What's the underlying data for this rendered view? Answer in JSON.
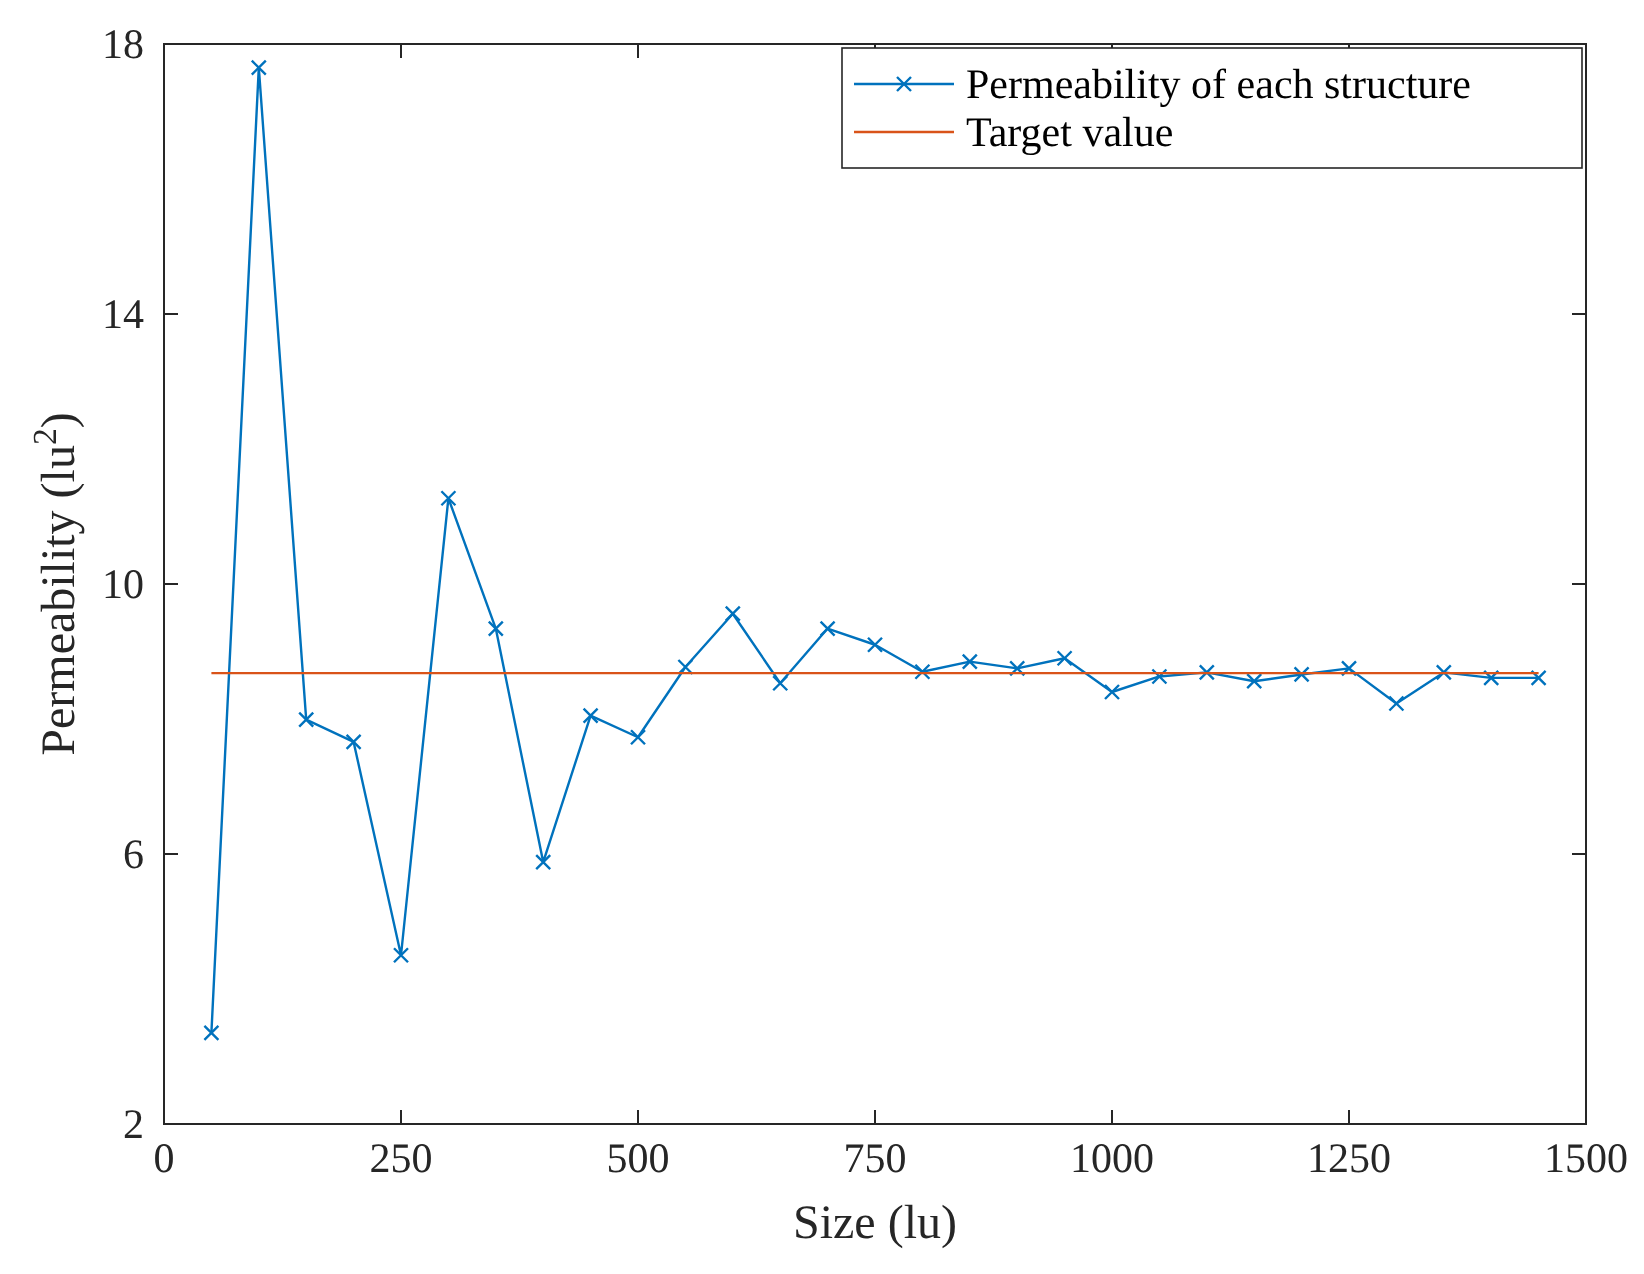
{
  "chart_data": {
    "type": "line",
    "xlabel": "Size (lu)",
    "ylabel": "Permeability (lu$^{2}$)",
    "xlim": [
      0,
      1500
    ],
    "xticks": [
      0,
      250,
      500,
      750,
      1000,
      1250,
      1500
    ],
    "ylim": [
      2,
      18
    ],
    "yticks": [
      2,
      6,
      10,
      14,
      18
    ],
    "grid": false,
    "legend": "top right",
    "line_style": "solid",
    "series": [
      {
        "name": "Permeability of each structure",
        "color": "#0072bd",
        "marker": "cross",
        "x": [
          50,
          100,
          150,
          200,
          250,
          300,
          350,
          400,
          450,
          500,
          550,
          600,
          650,
          700,
          750,
          800,
          850,
          900,
          950,
          1000,
          1050,
          1100,
          1150,
          1200,
          1250,
          1300,
          1350,
          1400,
          1450
        ],
        "values": [
          3.35,
          17.65,
          7.99,
          7.66,
          4.5,
          11.27,
          9.34,
          5.88,
          8.05,
          7.73,
          8.77,
          9.56,
          8.53,
          9.34,
          9.1,
          8.7,
          8.85,
          8.75,
          8.9,
          8.4,
          8.63,
          8.69,
          8.56,
          8.66,
          8.75,
          8.23,
          8.69,
          8.61,
          8.61
        ]
      },
      {
        "name": "Target value",
        "color": "#d95319",
        "marker": "none",
        "x": [
          50,
          1450
        ],
        "values": [
          8.68,
          8.68
        ]
      }
    ]
  }
}
